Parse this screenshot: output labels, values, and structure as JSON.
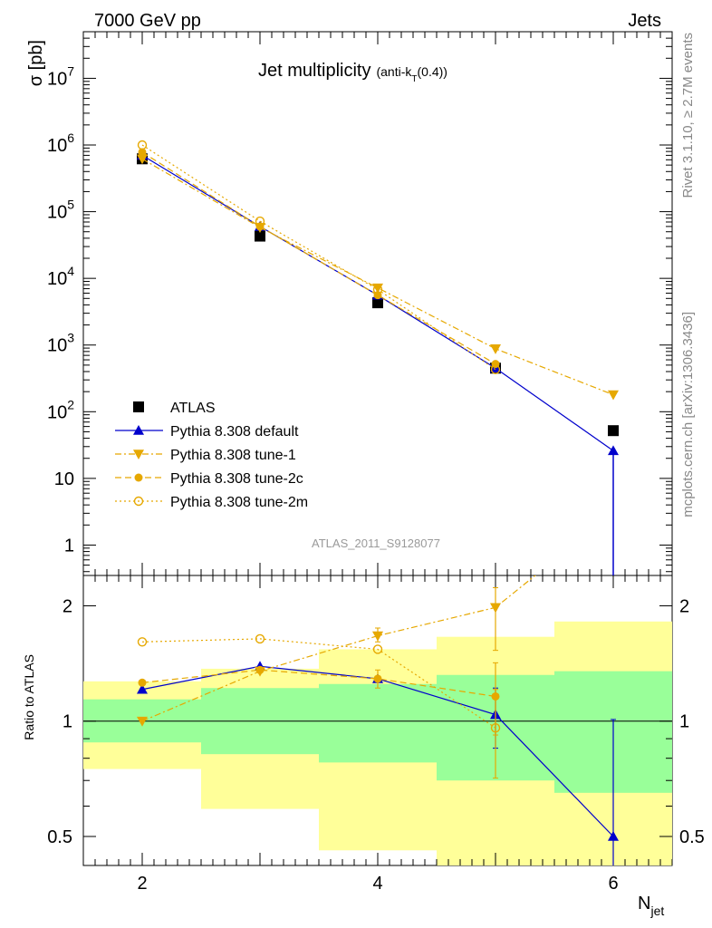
{
  "header": {
    "left": "7000 GeV pp",
    "right": "Jets",
    "analysis_id": "ATLAS_2011_S9128077",
    "side_rivet": "Rivet 3.1.10, ≥ 2.7M events",
    "side_mcplots": "mcplots.cern.ch [arXiv:1306.3436]"
  },
  "chart_data": [
    {
      "type": "line",
      "title": "Jet multiplicity",
      "title_sub_prefix": "(anti-k",
      "title_sub_sub": "T",
      "title_sub_suffix": "(0.4))",
      "xlabel_main": "N",
      "xlabel_sub": "jet",
      "ylabel": "σ [pb]",
      "yscale": "log",
      "xlim": [
        1.5,
        6.5
      ],
      "ylim": [
        0.35,
        50000000
      ],
      "xticks": [
        2,
        4,
        6
      ],
      "yticks": [
        {
          "value": 1,
          "label": "1"
        },
        {
          "value": 10,
          "label": "10"
        },
        {
          "value": 100,
          "label": "10",
          "exp": "2"
        },
        {
          "value": 1000,
          "label": "10",
          "exp": "3"
        },
        {
          "value": 10000,
          "label": "10",
          "exp": "4"
        },
        {
          "value": 100000,
          "label": "10",
          "exp": "5"
        },
        {
          "value": 1000000,
          "label": "10",
          "exp": "6"
        },
        {
          "value": 10000000,
          "label": "10",
          "exp": "7"
        }
      ],
      "legend_position": "bottom-left",
      "series": [
        {
          "name": "ATLAS",
          "color": "#000000",
          "marker": "square",
          "line": "none",
          "x": [
            2,
            3,
            4,
            5,
            6
          ],
          "y": [
            620000,
            43000,
            4300,
            450,
            52
          ]
        },
        {
          "name": "Pythia 8.308 default",
          "color": "#0000cc",
          "marker": "triangle-up",
          "line": "solid",
          "x": [
            2,
            3,
            4,
            5,
            6
          ],
          "y": [
            700000,
            60000,
            5600,
            450,
            26
          ],
          "yerr_low": [
            0,
            0,
            0,
            0,
            25.9
          ]
        },
        {
          "name": "Pythia 8.308 tune-1",
          "color": "#e6a800",
          "marker": "triangle-down",
          "line": "dashdot",
          "x": [
            2,
            3,
            4,
            5,
            6
          ],
          "y": [
            620000,
            58000,
            7200,
            880,
            180
          ]
        },
        {
          "name": "Pythia 8.308 tune-2c",
          "color": "#e6a800",
          "marker": "circle",
          "line": "dashed",
          "x": [
            2,
            3,
            4,
            5,
            6
          ],
          "y": [
            780000,
            60000,
            5600,
            520,
            null
          ]
        },
        {
          "name": "Pythia 8.308 tune-2m",
          "color": "#e6a800",
          "marker": "circle-open",
          "line": "dotted",
          "x": [
            2,
            3,
            4,
            5,
            6
          ],
          "y": [
            1000000,
            72000,
            6800,
            430,
            null
          ]
        }
      ]
    },
    {
      "type": "line",
      "ylabel": "Ratio to ATLAS",
      "yscale": "log",
      "xlim": [
        1.5,
        6.5
      ],
      "ylim": [
        0.42,
        2.4
      ],
      "yticks": [
        {
          "value": 0.5,
          "label": "0.5"
        },
        {
          "value": 1,
          "label": "1"
        },
        {
          "value": 2,
          "label": "2"
        }
      ],
      "reference_line": 1,
      "bands": [
        {
          "x0": 1.5,
          "x1": 2.5,
          "inner": [
            0.88,
            1.14
          ],
          "outer": [
            0.75,
            1.27
          ]
        },
        {
          "x0": 2.5,
          "x1": 3.5,
          "inner": [
            0.82,
            1.22
          ],
          "outer": [
            0.59,
            1.37
          ]
        },
        {
          "x0": 3.5,
          "x1": 4.5,
          "inner": [
            0.78,
            1.25
          ],
          "outer": [
            0.46,
            1.54
          ]
        },
        {
          "x0": 4.5,
          "x1": 5.5,
          "inner": [
            0.7,
            1.32
          ],
          "outer": [
            0.34,
            1.66
          ]
        },
        {
          "x0": 5.5,
          "x1": 6.5,
          "inner": [
            0.65,
            1.35
          ],
          "outer": [
            0.3,
            1.82
          ]
        }
      ],
      "band_colors": {
        "inner": "#99ff99",
        "outer": "#ffff99"
      },
      "series": [
        {
          "name": "Pythia 8.308 default",
          "color": "#0000cc",
          "marker": "triangle-up",
          "line": "solid",
          "x": [
            2,
            3,
            4,
            5,
            6
          ],
          "y": [
            1.21,
            1.39,
            1.29,
            1.04,
            0.5
          ],
          "err_low": [
            0,
            0,
            0,
            0.19,
            0.12
          ],
          "err_high": [
            0,
            0,
            0,
            0.18,
            0.51
          ]
        },
        {
          "name": "Pythia 8.308 tune-1",
          "color": "#e6a800",
          "marker": "triangle-down",
          "line": "dashdot",
          "x": [
            2,
            3,
            4,
            5,
            6
          ],
          "y": [
            1.0,
            1.35,
            1.67,
            1.98,
            3.5
          ],
          "err_low": [
            0,
            0,
            0.06,
            0.45,
            0
          ],
          "err_high": [
            0,
            0,
            0.08,
            0.25,
            0
          ]
        },
        {
          "name": "Pythia 8.308 tune-2c",
          "color": "#e6a800",
          "marker": "circle",
          "line": "dashed",
          "x": [
            2,
            3,
            4,
            5
          ],
          "y": [
            1.26,
            1.36,
            1.29,
            1.16
          ],
          "err_low": [
            0,
            0,
            0.07,
            0.24
          ],
          "err_high": [
            0,
            0,
            0.07,
            0.26
          ]
        },
        {
          "name": "Pythia 8.308 tune-2m",
          "color": "#e6a800",
          "marker": "circle-open",
          "line": "dotted",
          "x": [
            2,
            3,
            4,
            5
          ],
          "y": [
            1.61,
            1.64,
            1.54,
            0.96
          ],
          "err_low": [
            0,
            0,
            0,
            0.25
          ],
          "err_high": [
            0,
            0,
            0,
            0.25
          ]
        }
      ]
    }
  ]
}
